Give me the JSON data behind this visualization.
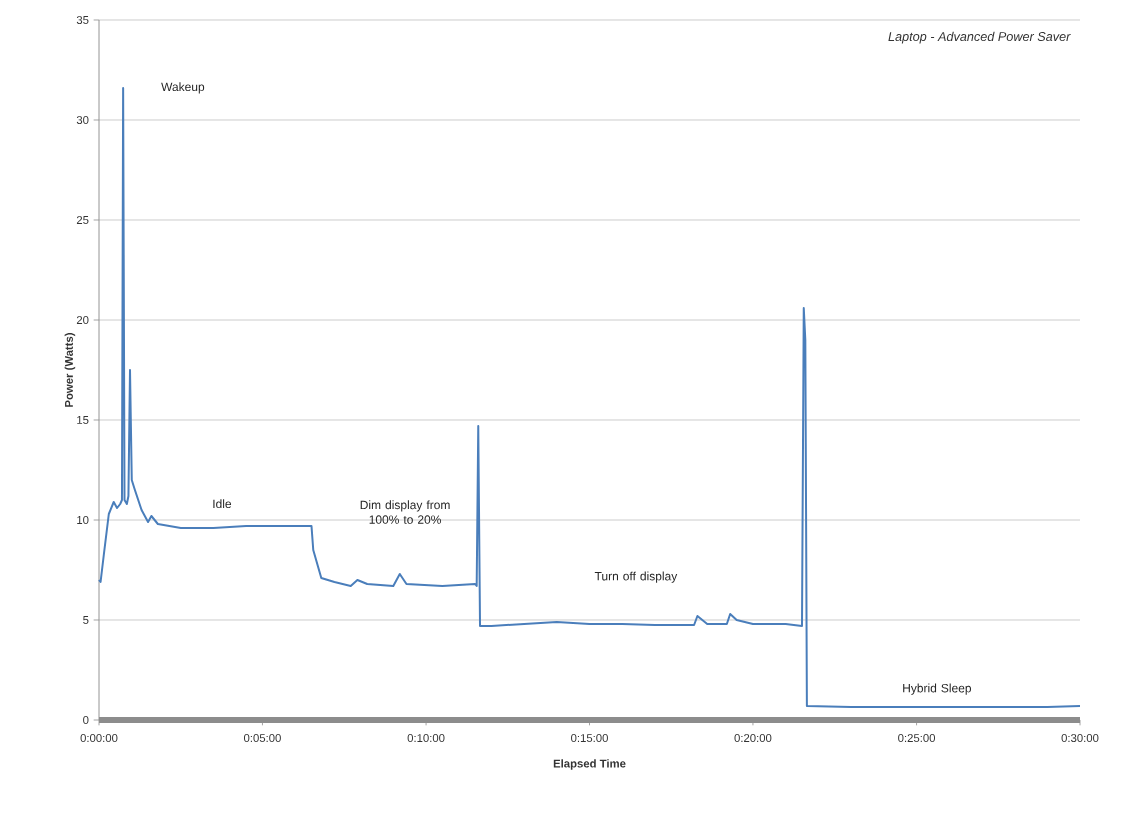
{
  "chart_data": {
    "type": "line",
    "title": "Laptop - Advanced Power Saver",
    "xlabel": "Elapsed Time",
    "ylabel": "Power (Watts)",
    "x": [
      0,
      0.0008,
      0.0025,
      0.005,
      0.0075,
      0.0092,
      0.0108,
      0.0117,
      0.0123,
      0.013,
      0.0142,
      0.015,
      0.0158,
      0.0167,
      0.0183,
      0.0217,
      0.025,
      0.0267,
      0.03,
      0.0417,
      0.0583,
      0.075,
      0.0917,
      0.1083,
      0.1092,
      0.1133,
      0.12,
      0.1283,
      0.1317,
      0.1367,
      0.15,
      0.1533,
      0.1567,
      0.175,
      0.1917,
      0.1925,
      0.1933,
      0.1942,
      0.2,
      0.2167,
      0.2333,
      0.25,
      0.2667,
      0.2833,
      0.3033,
      0.305,
      0.31,
      0.32,
      0.3217,
      0.325,
      0.3333,
      0.35,
      0.3583,
      0.3592,
      0.36,
      0.3608,
      0.3833,
      0.4167,
      0.45,
      0.4833,
      0.5
    ],
    "series": [
      {
        "color": "#4a7ebb",
        "values": [
          7.0,
          6.9,
          8.3,
          10.3,
          10.9,
          10.6,
          10.8,
          11.0,
          31.6,
          11.0,
          10.8,
          11.2,
          17.5,
          12.0,
          11.5,
          10.5,
          9.9,
          10.2,
          9.8,
          9.6,
          9.6,
          9.7,
          9.7,
          9.7,
          8.5,
          7.1,
          6.9,
          6.7,
          7.0,
          6.8,
          6.7,
          7.3,
          6.8,
          6.7,
          6.8,
          6.7,
          14.7,
          4.7,
          4.7,
          4.8,
          4.9,
          4.8,
          4.8,
          4.75,
          4.75,
          5.2,
          4.8,
          4.8,
          5.3,
          5.0,
          4.8,
          4.8,
          4.7,
          20.6,
          19.0,
          0.7,
          0.65,
          0.65,
          0.65,
          0.65,
          0.7
        ]
      }
    ],
    "xlim": [
      0,
      0.5
    ],
    "ylim": [
      0,
      35
    ],
    "xticks": [
      {
        "value": 0,
        "label": "0:00:00"
      },
      {
        "value": 0.0833,
        "label": "0:05:00"
      },
      {
        "value": 0.1667,
        "label": "0:10:00"
      },
      {
        "value": 0.25,
        "label": "0:15:00"
      },
      {
        "value": 0.3333,
        "label": "0:20:00"
      },
      {
        "value": 0.4167,
        "label": "0:25:00"
      },
      {
        "value": 0.5,
        "label": "0:30:00"
      }
    ],
    "yticks": [
      0,
      5,
      10,
      15,
      20,
      25,
      30,
      35
    ],
    "grid": "y",
    "annotations": [
      "Wakeup",
      "Idle",
      "Dim display from 100% to 20%",
      "Turn off display",
      "Hybrid Sleep"
    ]
  }
}
